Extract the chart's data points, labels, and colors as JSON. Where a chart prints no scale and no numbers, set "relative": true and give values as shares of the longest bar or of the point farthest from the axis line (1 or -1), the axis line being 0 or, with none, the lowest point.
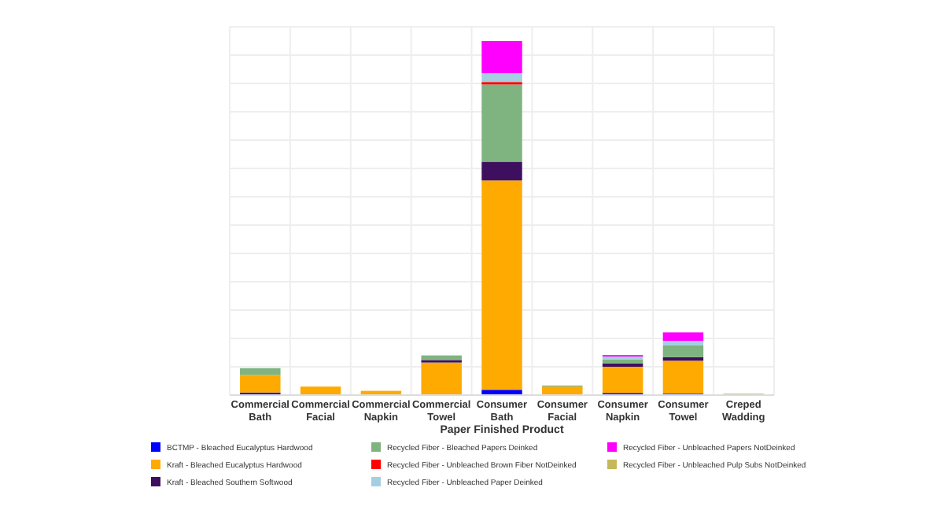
{
  "chart_data": {
    "type": "bar",
    "stacked": true,
    "relative": true,
    "grid": true,
    "legend": "bottom",
    "xlabel": "Paper Finished Product",
    "categories": [
      "Commercial Bath",
      "Commercial Facial",
      "Commercial Napkin",
      "Commercial Towel",
      "Consumer Bath",
      "Consumer Facial",
      "Consumer Napkin",
      "Consumer Towel",
      "Creped Wadding"
    ],
    "series": [
      {
        "name": "BCTMP - Bleached Eucalyptus Hardwood",
        "color": "#0000ff",
        "values": [
          0.007,
          null,
          null,
          null,
          0.015,
          null,
          0.006,
          0.004,
          null
        ]
      },
      {
        "name": "Kraft - Bleached Eucalyptus Hardwood",
        "color": "#ffaa00",
        "values": [
          0.05,
          0.024,
          0.012,
          0.092,
          0.591,
          0.024,
          0.074,
          0.093,
          null
        ]
      },
      {
        "name": "Kraft - Bleached Southern Softwood",
        "color": "#3f0f5f",
        "values": [
          null,
          null,
          null,
          0.007,
          0.053,
          null,
          0.009,
          0.01,
          null
        ]
      },
      {
        "name": "Recycled Fiber - Bleached Papers Deinked",
        "color": "#7fb37f",
        "values": [
          0.019,
          null,
          null,
          0.013,
          0.218,
          0.003,
          0.012,
          0.033,
          null
        ]
      },
      {
        "name": "Recycled Fiber - Unbleached Brown Fiber NotDeinked",
        "color": "#ff0000",
        "values": [
          null,
          null,
          null,
          null,
          0.007,
          null,
          null,
          null,
          null
        ]
      },
      {
        "name": "Recycled Fiber - Unbleached Paper Deinked",
        "color": "#a6cee3",
        "values": [
          null,
          null,
          null,
          null,
          0.025,
          null,
          0.008,
          0.013,
          null
        ]
      },
      {
        "name": "Recycled Fiber - Unbleached Papers NotDeinked",
        "color": "#ff00ff",
        "values": [
          null,
          null,
          null,
          null,
          0.091,
          null,
          0.004,
          0.024,
          null
        ]
      },
      {
        "name": "Recycled Fiber - Unbleached Pulp Subs NotDeinked",
        "color": "#c5b85a",
        "values": [
          null,
          null,
          null,
          null,
          null,
          null,
          null,
          null,
          0.004
        ]
      }
    ]
  }
}
